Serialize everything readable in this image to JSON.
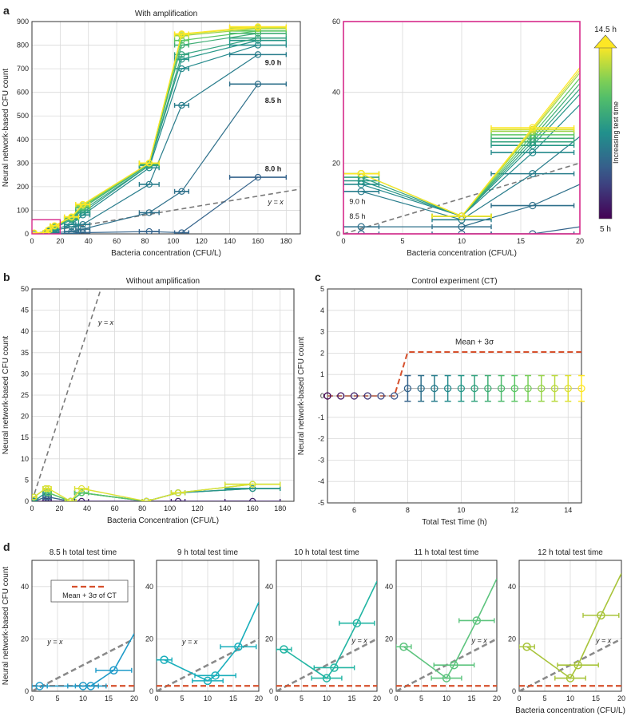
{
  "figure": {
    "panel_letters": [
      "a",
      "b",
      "c",
      "d"
    ]
  },
  "chart_data": [
    {
      "id": "a1",
      "type": "line",
      "title": "With amplification",
      "xlabel": "Bacteria concentration (CFU/L)",
      "ylabel": "Neural network-based CFU count",
      "xlim": [
        0,
        190
      ],
      "ylim": [
        0,
        900
      ],
      "xticks": [
        0,
        20,
        40,
        60,
        80,
        100,
        120,
        140,
        160,
        180
      ],
      "yticks": [
        0,
        100,
        200,
        300,
        400,
        500,
        600,
        700,
        800,
        900
      ],
      "grid": true,
      "x": [
        1.5,
        10,
        12,
        16,
        28,
        36,
        83,
        106,
        160
      ],
      "x_err": [
        1.5,
        2,
        2,
        3,
        5,
        5,
        7,
        5,
        20
      ],
      "reference_line": {
        "label": "y = x",
        "slope": 1
      },
      "annotations": [
        "9.0 h",
        "8.5 h",
        "8.0 h"
      ],
      "zoom_box": {
        "x": [
          0,
          20
        ],
        "y": [
          0,
          60
        ]
      },
      "series": [
        {
          "time_h": 8.0,
          "values": [
            0,
            0,
            0,
            0,
            2,
            5,
            10,
            5,
            240
          ]
        },
        {
          "time_h": 8.5,
          "values": [
            0,
            0,
            5,
            5,
            10,
            20,
            90,
            180,
            635
          ]
        },
        {
          "time_h": 9.0,
          "values": [
            0,
            2,
            8,
            15,
            30,
            40,
            210,
            545,
            760
          ]
        },
        {
          "time_h": 9.5,
          "values": [
            2,
            4,
            12,
            20,
            40,
            80,
            280,
            700,
            800
          ]
        },
        {
          "time_h": 10.0,
          "values": [
            2,
            5,
            14,
            25,
            60,
            90,
            290,
            740,
            820
          ]
        },
        {
          "time_h": 10.5,
          "values": [
            3,
            5,
            15,
            30,
            65,
            100,
            290,
            760,
            830
          ]
        },
        {
          "time_h": 11.0,
          "values": [
            3,
            6,
            16,
            30,
            65,
            110,
            295,
            800,
            850
          ]
        },
        {
          "time_h": 12.0,
          "values": [
            3,
            6,
            16,
            32,
            70,
            115,
            300,
            820,
            860
          ]
        },
        {
          "time_h": 13.0,
          "values": [
            3,
            6,
            17,
            33,
            70,
            120,
            300,
            840,
            870
          ]
        },
        {
          "time_h": 14.0,
          "values": [
            4,
            6,
            17,
            34,
            72,
            125,
            300,
            845,
            875
          ]
        },
        {
          "time_h": 14.5,
          "values": [
            4,
            7,
            17,
            35,
            72,
            125,
            300,
            848,
            878
          ]
        }
      ]
    },
    {
      "id": "a2",
      "type": "line",
      "xlabel": "Bacteria concentration (CFU/L)",
      "xlim": [
        0,
        20
      ],
      "ylim": [
        0,
        60
      ],
      "xticks": [
        0,
        5,
        10,
        15,
        20
      ],
      "yticks": [
        0,
        20,
        40,
        60
      ],
      "grid": true,
      "x": [
        1.5,
        10,
        16
      ],
      "x_err": [
        1.5,
        2.5,
        3.5
      ],
      "reference_line": {
        "label": "y = x",
        "slope": 1
      },
      "annotations": [
        "9.0 h",
        "8.5 h"
      ],
      "colorbar": {
        "top_label": "14.5 h",
        "bottom_label": "5 h",
        "label": "Increasing test time"
      },
      "series": [
        {
          "time_h": 8.0,
          "values": [
            0,
            0,
            0
          ]
        },
        {
          "time_h": 8.5,
          "values": [
            2,
            2,
            8
          ]
        },
        {
          "time_h": 9.0,
          "values": [
            12,
            4,
            17
          ]
        },
        {
          "time_h": 9.5,
          "values": [
            14,
            5,
            23
          ]
        },
        {
          "time_h": 10.0,
          "values": [
            15,
            5,
            25
          ]
        },
        {
          "time_h": 10.5,
          "values": [
            16,
            5,
            26
          ]
        },
        {
          "time_h": 11.0,
          "values": [
            17,
            5,
            27
          ]
        },
        {
          "time_h": 12.0,
          "values": [
            17,
            5,
            28
          ]
        },
        {
          "time_h": 13.0,
          "values": [
            17,
            5,
            29
          ]
        },
        {
          "time_h": 14.0,
          "values": [
            17,
            5,
            29.5
          ]
        },
        {
          "time_h": 14.5,
          "values": [
            17,
            5,
            30
          ]
        }
      ]
    },
    {
      "id": "b",
      "type": "line",
      "title": "Without amplification",
      "xlabel": "Bacteria Concentration (CFU/L)",
      "ylabel": "Neural network-based CFU count",
      "xlim": [
        0,
        190
      ],
      "ylim": [
        0,
        50
      ],
      "xticks": [
        0,
        20,
        40,
        60,
        80,
        100,
        120,
        140,
        160,
        180
      ],
      "yticks": [
        0,
        5,
        10,
        15,
        20,
        25,
        30,
        35,
        40,
        45,
        50
      ],
      "grid": true,
      "x": [
        1.5,
        10,
        12,
        28,
        36,
        83,
        106,
        160
      ],
      "x_err": [
        1.5,
        2,
        2,
        4,
        5,
        3,
        5,
        20
      ],
      "reference_line": {
        "label": "y = x",
        "slope": 1
      },
      "series": [
        {
          "time_h": 6,
          "values": [
            0,
            0,
            0,
            0,
            0,
            0,
            0,
            0
          ]
        },
        {
          "time_h": 8,
          "values": [
            0,
            1,
            1,
            0,
            2,
            0,
            2,
            3
          ]
        },
        {
          "time_h": 10,
          "values": [
            0,
            2,
            2,
            0,
            2,
            0,
            2,
            3
          ]
        },
        {
          "time_h": 12,
          "values": [
            1,
            3,
            2,
            0,
            2,
            0,
            2,
            4
          ]
        },
        {
          "time_h": 14,
          "values": [
            1,
            3,
            3,
            0,
            3,
            0,
            2,
            4
          ]
        }
      ]
    },
    {
      "id": "c",
      "type": "line",
      "title": "Control experiment (CT)",
      "xlabel": "Total Test Time (h)",
      "ylabel": "Neural network-based CFU count",
      "xlim": [
        5,
        14.5
      ],
      "ylim": [
        -5,
        5
      ],
      "xticks": [
        6,
        8,
        10,
        12,
        14
      ],
      "yticks": [
        -5,
        -4,
        -3,
        -2,
        -1,
        0,
        1,
        2,
        3,
        4,
        5
      ],
      "grid": true,
      "x": [
        5,
        5.5,
        6,
        6.5,
        7,
        7.5,
        8,
        8.5,
        9,
        9.5,
        10,
        10.5,
        11,
        11.5,
        12,
        12.5,
        13,
        13.5,
        14,
        14.5
      ],
      "values": [
        0,
        0,
        0,
        0,
        0,
        0,
        0.35,
        0.35,
        0.35,
        0.35,
        0.35,
        0.35,
        0.35,
        0.35,
        0.35,
        0.35,
        0.35,
        0.35,
        0.35,
        0.35
      ],
      "y_err": [
        0,
        0,
        0,
        0,
        0,
        0,
        0.6,
        0.6,
        0.6,
        0.6,
        0.6,
        0.6,
        0.6,
        0.6,
        0.6,
        0.6,
        0.6,
        0.6,
        0.6,
        0.6
      ],
      "threshold": {
        "label": "Mean + 3σ",
        "x": [
          5,
          7.5,
          8,
          14.5
        ],
        "y": [
          0,
          0,
          2.05,
          2.05
        ]
      }
    },
    {
      "id": "d1",
      "type": "line",
      "title": "8.5 h total test time",
      "ylabel": "Neural network-based CFU count",
      "xlim": [
        0,
        20
      ],
      "ylim": [
        0,
        50
      ],
      "xticks": [
        0,
        5,
        10,
        15,
        20
      ],
      "yticks": [
        0,
        20,
        40
      ],
      "x": [
        1.5,
        10,
        11.5,
        16
      ],
      "x_err": [
        1.5,
        3,
        3,
        3.5
      ],
      "values": [
        2,
        2,
        2,
        8
      ],
      "end_value": 22,
      "ct_threshold": 2.05,
      "legend": "Mean + 3σ of CT",
      "reference_line": {
        "label": "y = x",
        "slope": 1
      },
      "color": "#1f9bc9"
    },
    {
      "id": "d2",
      "type": "line",
      "title": "9 h total test time",
      "xlim": [
        0,
        20
      ],
      "ylim": [
        0,
        50
      ],
      "xticks": [
        0,
        5,
        10,
        15,
        20
      ],
      "yticks": [
        0,
        20,
        40
      ],
      "x": [
        1.5,
        10,
        11.5,
        16
      ],
      "x_err": [
        1.5,
        3,
        4,
        3.5
      ],
      "values": [
        12,
        4,
        6,
        17
      ],
      "end_value": 34,
      "ct_threshold": 2.05,
      "reference_line": {
        "label": "y = x",
        "slope": 1
      },
      "color": "#18aebb"
    },
    {
      "id": "d3",
      "type": "line",
      "title": "10 h total test time",
      "xlim": [
        0,
        20
      ],
      "ylim": [
        0,
        50
      ],
      "xticks": [
        0,
        5,
        10,
        15,
        20
      ],
      "yticks": [
        0,
        20,
        40
      ],
      "x": [
        1.5,
        10,
        11.5,
        16
      ],
      "x_err": [
        1.5,
        3,
        4,
        3.5
      ],
      "values": [
        16,
        5,
        9,
        26
      ],
      "end_value": 42,
      "ct_threshold": 2.05,
      "reference_line": {
        "label": "y = x",
        "slope": 1
      },
      "color": "#22b5a3"
    },
    {
      "id": "d4",
      "type": "line",
      "title": "11 h total test time",
      "xlim": [
        0,
        20
      ],
      "ylim": [
        0,
        50
      ],
      "xticks": [
        0,
        5,
        10,
        15,
        20
      ],
      "yticks": [
        0,
        20,
        40
      ],
      "x": [
        1.5,
        10,
        11.5,
        16
      ],
      "x_err": [
        1.5,
        3,
        4,
        3.5
      ],
      "values": [
        17,
        5,
        10,
        27
      ],
      "end_value": 43,
      "ct_threshold": 2.05,
      "reference_line": {
        "label": "y = x",
        "slope": 1
      },
      "color": "#5dc47e"
    },
    {
      "id": "d5",
      "type": "line",
      "title": "12 h total test time",
      "xlabel": "Bacteria concentration (CFU/L)",
      "xlim": [
        0,
        20
      ],
      "ylim": [
        0,
        50
      ],
      "xticks": [
        0,
        5,
        10,
        15,
        20
      ],
      "yticks": [
        0,
        20,
        40
      ],
      "x": [
        1.5,
        10,
        11.5,
        16
      ],
      "x_err": [
        1.5,
        3,
        4,
        3.5
      ],
      "values": [
        17,
        5,
        10,
        29
      ],
      "end_value": 45,
      "ct_threshold": 2.05,
      "reference_line": {
        "label": "y = x",
        "slope": 1
      },
      "color": "#a8c43a"
    }
  ]
}
